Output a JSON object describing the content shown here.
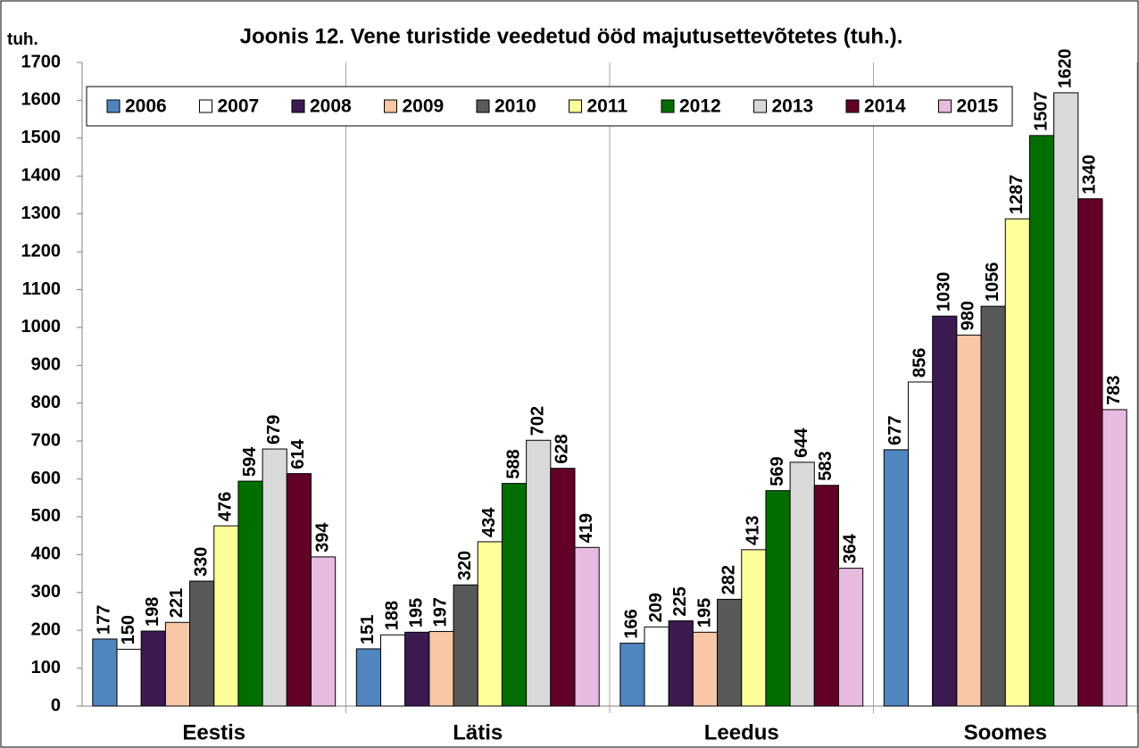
{
  "chart_data": {
    "type": "bar",
    "title": "Joonis 12. Vene turistide veedetud ööd majutusettevõtetes (tuh.).",
    "y_label": "tuh.",
    "categories": [
      "Eestis",
      "Lätis",
      "Leedus",
      "Soomes"
    ],
    "series": [
      {
        "name": "2006",
        "color": "#4f86c0",
        "values": [
          177,
          151,
          166,
          677
        ]
      },
      {
        "name": "2007",
        "color": "#ffffff",
        "values": [
          150,
          188,
          209,
          856
        ]
      },
      {
        "name": "2008",
        "color": "#3b1a52",
        "values": [
          198,
          195,
          225,
          1030
        ]
      },
      {
        "name": "2009",
        "color": "#f8c7a6",
        "values": [
          221,
          197,
          195,
          980
        ]
      },
      {
        "name": "2010",
        "color": "#595959",
        "values": [
          330,
          320,
          282,
          1056
        ]
      },
      {
        "name": "2011",
        "color": "#ffff99",
        "values": [
          476,
          434,
          413,
          1287
        ]
      },
      {
        "name": "2012",
        "color": "#006f00",
        "values": [
          594,
          588,
          569,
          1507
        ]
      },
      {
        "name": "2013",
        "color": "#d9d9d9",
        "values": [
          679,
          702,
          644,
          1620
        ]
      },
      {
        "name": "2014",
        "color": "#620028",
        "values": [
          614,
          628,
          583,
          1340
        ]
      },
      {
        "name": "2015",
        "color": "#e7bbdf",
        "values": [
          394,
          419,
          364,
          783
        ]
      }
    ],
    "ylim": [
      0,
      1700
    ],
    "yticks": [
      0,
      100,
      200,
      300,
      400,
      500,
      600,
      700,
      800,
      900,
      1000,
      1100,
      1200,
      1300,
      1400,
      1500,
      1600,
      1700
    ],
    "legend": "top-left"
  }
}
